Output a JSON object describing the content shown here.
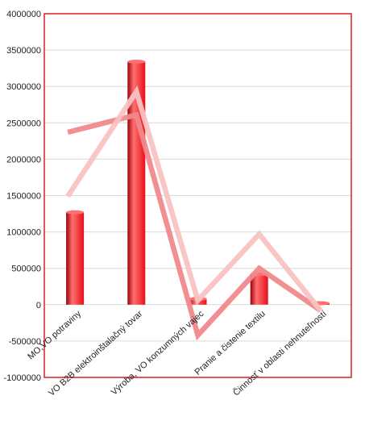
{
  "chart_data": {
    "type": "bar",
    "categories": [
      "MO,VO potraviny",
      "VO B2B elektroinštalačný tovar",
      "Výroba, VO konzumných vajec",
      "Pranie a čistenie textilu",
      "Činnosť v oblasti nehnuteľností"
    ],
    "series": [
      {
        "type": "bar",
        "values": [
          1270000,
          3340000,
          80000,
          420000,
          20000
        ]
      },
      {
        "type": "line",
        "values": [
          2370000,
          2610000,
          -420000,
          500000,
          -80000
        ]
      },
      {
        "type": "line",
        "values": [
          1490000,
          2930000,
          60000,
          970000,
          -80000
        ]
      }
    ],
    "ylim": [
      -1000000,
      4000000
    ],
    "yticks": [
      -1000000,
      -500000,
      0,
      500000,
      1000000,
      1500000,
      2000000,
      2500000,
      3000000,
      3500000,
      4000000
    ],
    "grid": true,
    "colors": {
      "bar": "#e8101a",
      "bar_highlight": "#ff6f6f",
      "bar_shadow": "#9c0008",
      "line_dark": "#f0898c",
      "line_light": "#f9c2c2",
      "gridline": "#d9d9d9",
      "border": "#e31b1b",
      "axis_text": "#222222"
    }
  }
}
